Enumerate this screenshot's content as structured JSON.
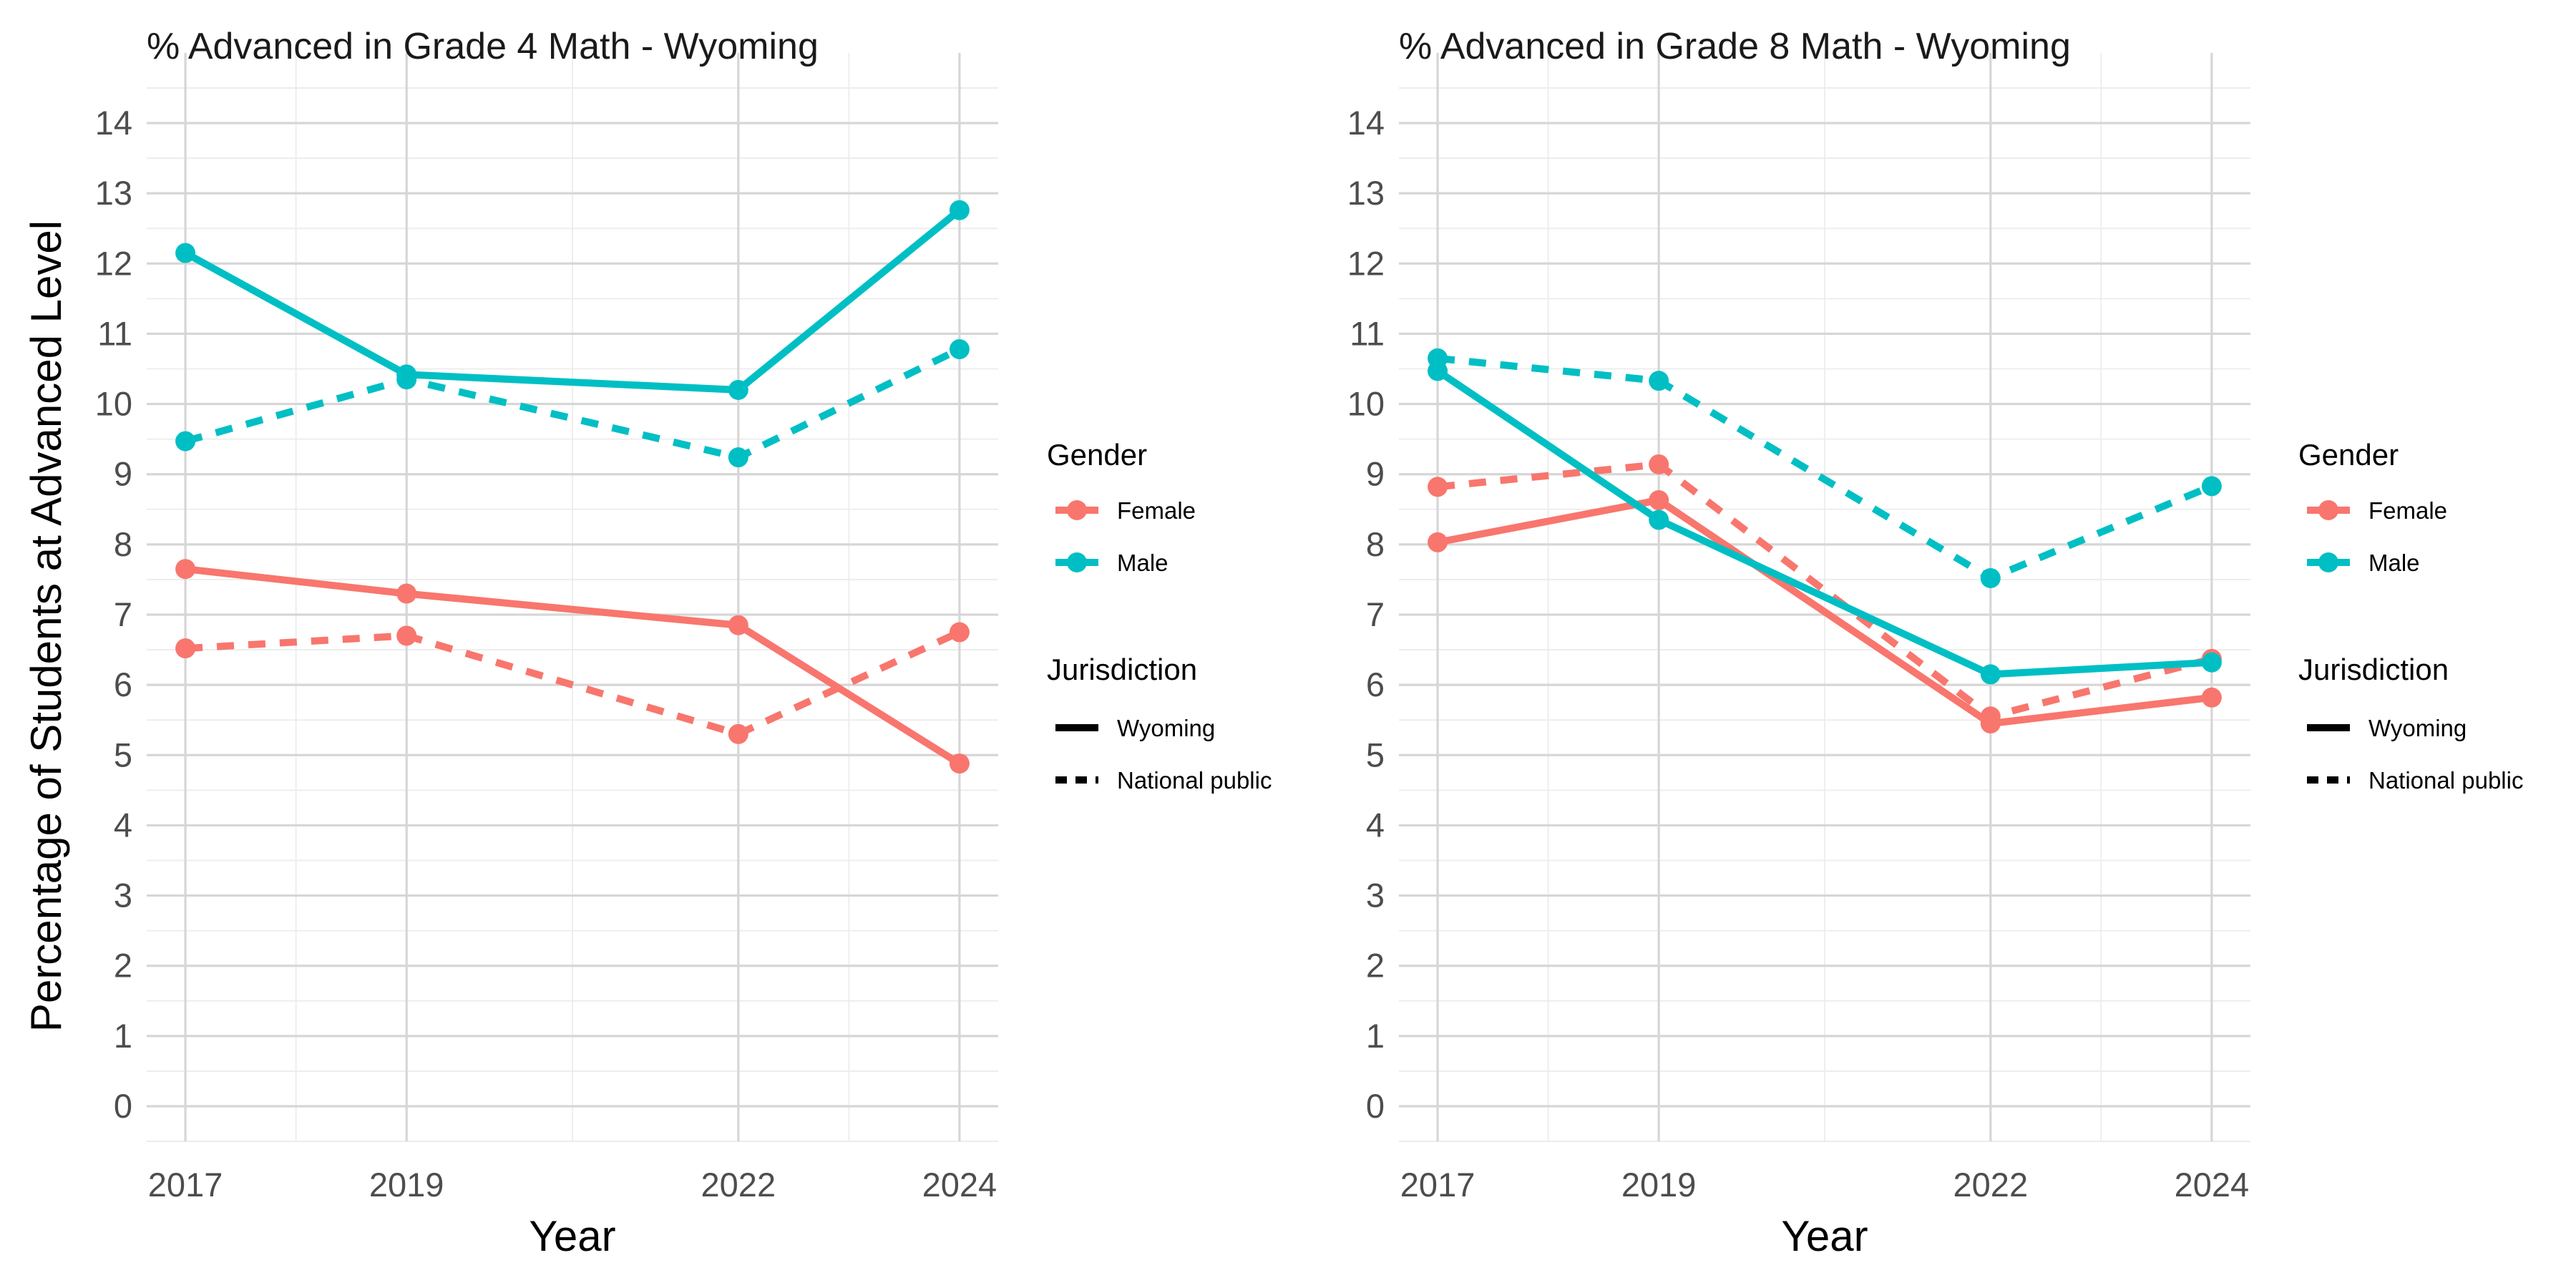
{
  "y_axis_label": "Percentage of Students at Advanced Level",
  "chart_data": [
    {
      "type": "line",
      "title": "% Advanced in Grade 4 Math - Wyoming",
      "xlabel": "Year",
      "ylabel": "Percentage of Students at Advanced Level",
      "x": [
        2017,
        2019,
        2022,
        2024
      ],
      "x_ticks": [
        "2017",
        "2019",
        "2022",
        "2024"
      ],
      "y_ticks": [
        0,
        1,
        2,
        3,
        4,
        5,
        6,
        7,
        8,
        9,
        10,
        11,
        12,
        13,
        14
      ],
      "ylim": [
        -0.5,
        15
      ],
      "xlim": [
        2016.65,
        2024.35
      ],
      "grid": true,
      "series": [
        {
          "name": "Female",
          "jurisdiction": "Wyoming",
          "values": [
            7.65,
            7.3,
            6.85,
            4.88
          ]
        },
        {
          "name": "Female",
          "jurisdiction": "National public",
          "values": [
            6.52,
            6.7,
            5.3,
            6.75
          ]
        },
        {
          "name": "Male",
          "jurisdiction": "Wyoming",
          "values": [
            12.15,
            10.42,
            10.2,
            12.76
          ]
        },
        {
          "name": "Male",
          "jurisdiction": "National public",
          "values": [
            9.47,
            10.35,
            9.24,
            10.78
          ]
        }
      ],
      "legend": {
        "position": "right",
        "gender_title": "Gender",
        "gender_items": [
          "Female",
          "Male"
        ],
        "jurisdiction_title": "Jurisdiction",
        "jurisdiction_items": [
          "Wyoming",
          "National public"
        ]
      }
    },
    {
      "type": "line",
      "title": "% Advanced in Grade 8 Math - Wyoming",
      "xlabel": "Year",
      "ylabel": "",
      "x": [
        2017,
        2019,
        2022,
        2024
      ],
      "x_ticks": [
        "2017",
        "2019",
        "2022",
        "2024"
      ],
      "y_ticks": [
        0,
        1,
        2,
        3,
        4,
        5,
        6,
        7,
        8,
        9,
        10,
        11,
        12,
        13,
        14
      ],
      "ylim": [
        -0.5,
        15
      ],
      "xlim": [
        2016.65,
        2024.35
      ],
      "grid": true,
      "series": [
        {
          "name": "Female",
          "jurisdiction": "Wyoming",
          "values": [
            8.03,
            8.63,
            5.45,
            5.82
          ]
        },
        {
          "name": "Female",
          "jurisdiction": "National public",
          "values": [
            8.82,
            9.14,
            5.55,
            6.37
          ]
        },
        {
          "name": "Male",
          "jurisdiction": "Wyoming",
          "values": [
            10.47,
            8.35,
            6.15,
            6.32
          ]
        },
        {
          "name": "Male",
          "jurisdiction": "National public",
          "values": [
            10.65,
            10.33,
            7.52,
            8.83
          ]
        }
      ],
      "legend": {
        "position": "right",
        "gender_title": "Gender",
        "gender_items": [
          "Female",
          "Male"
        ],
        "jurisdiction_title": "Jurisdiction",
        "jurisdiction_items": [
          "Wyoming",
          "National public"
        ]
      }
    }
  ],
  "colors": {
    "Female": "#F8766D",
    "Male": "#00BFC4"
  }
}
